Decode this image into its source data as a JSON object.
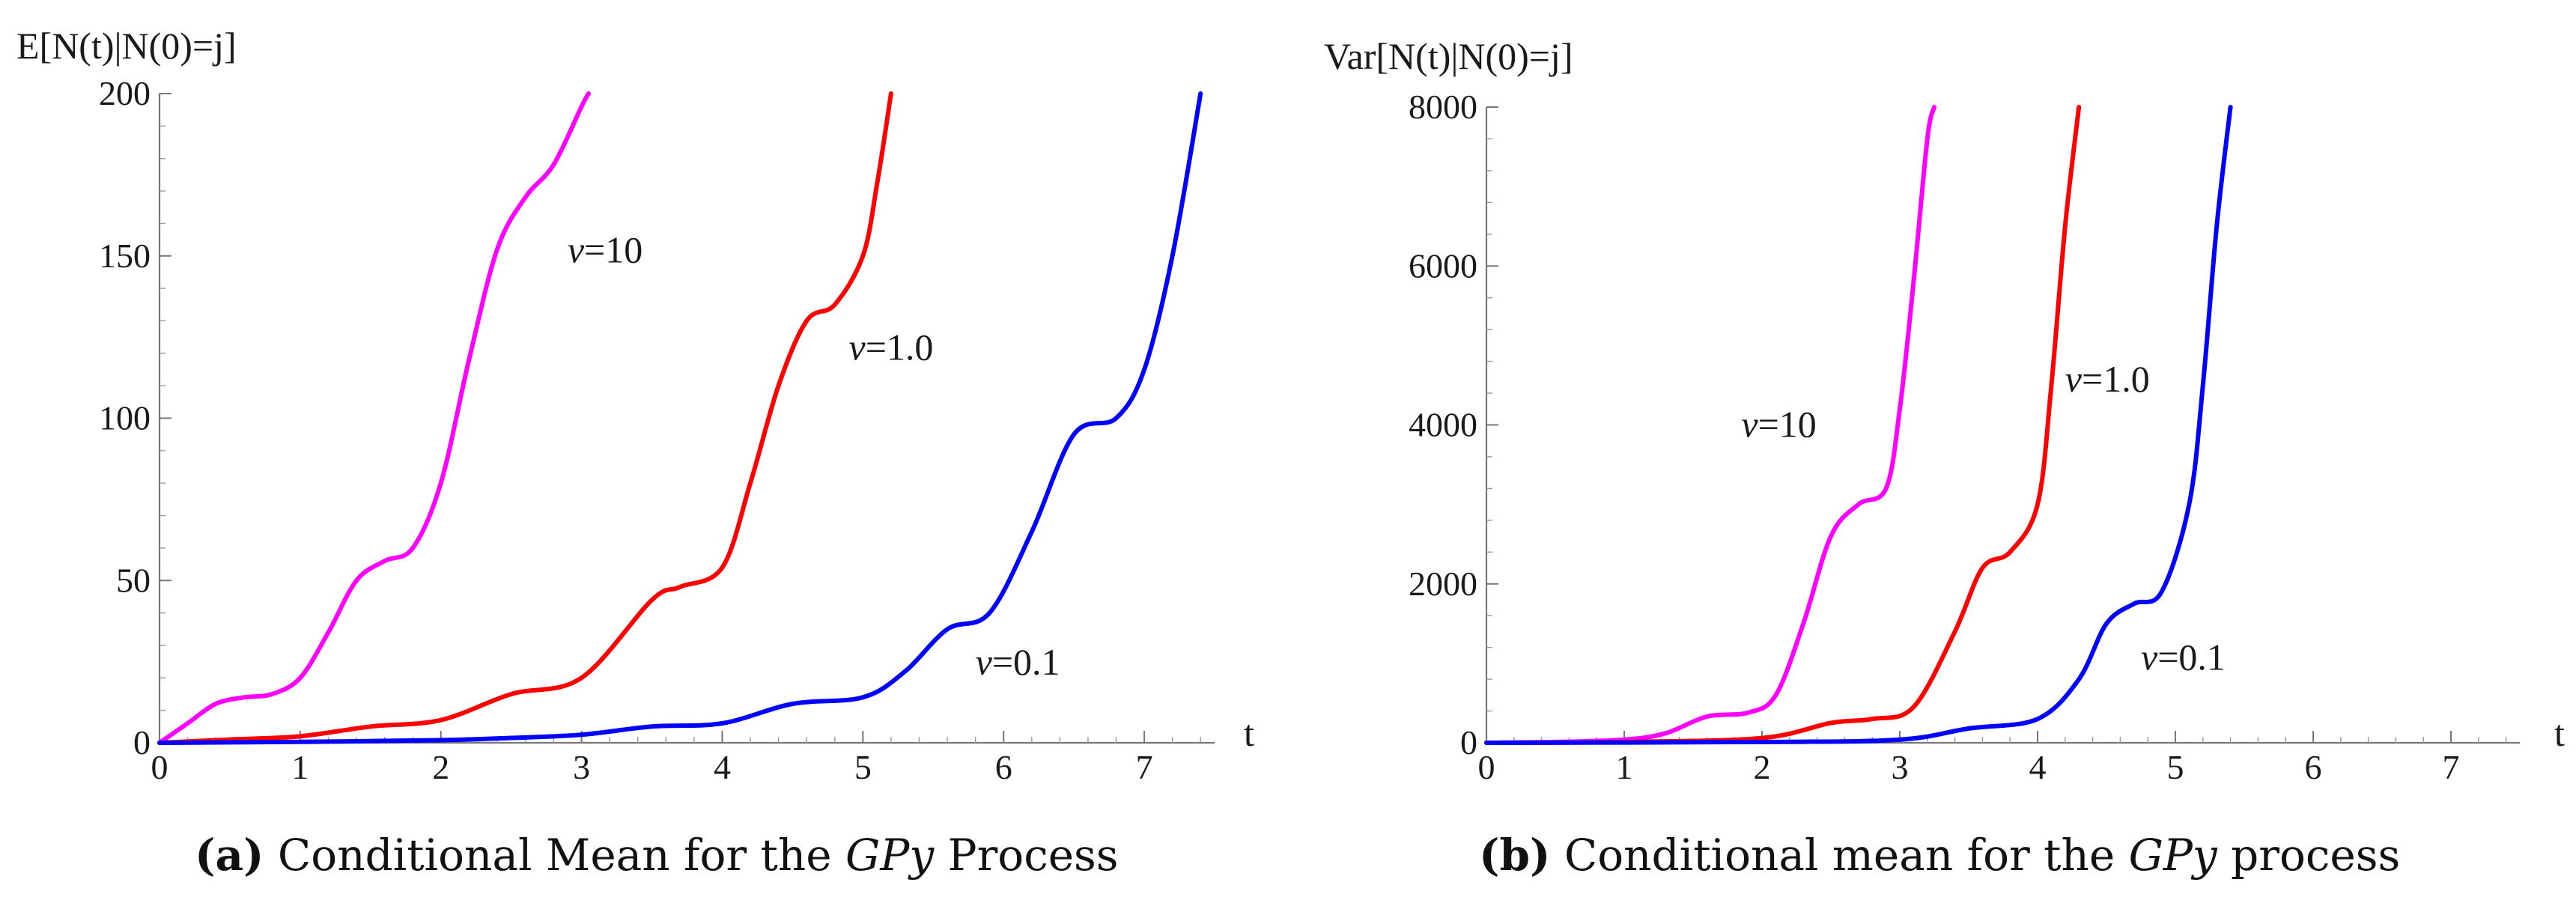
{
  "chart_data": [
    {
      "type": "line",
      "ylabel": "E[N(t)|N(0)=j]",
      "xlabel": "t",
      "xlim": [
        0,
        7.5
      ],
      "ylim": [
        0,
        200
      ],
      "xticks": [
        0,
        1,
        2,
        3,
        4,
        5,
        6,
        7
      ],
      "yticks": [
        0,
        50,
        100,
        150,
        200
      ],
      "series": [
        {
          "name": "ν=10",
          "color": "#ff00ff",
          "x": [
            0,
            0.2,
            0.4,
            0.6,
            0.8,
            1.0,
            1.2,
            1.4,
            1.6,
            1.8,
            2.0,
            2.2,
            2.4,
            2.6,
            2.8,
            3.0,
            3.05
          ],
          "y": [
            0,
            6,
            12,
            14,
            15,
            20,
            34,
            50,
            56,
            60,
            80,
            118,
            152,
            168,
            178,
            196,
            200
          ]
        },
        {
          "name": "ν=1.0",
          "color": "#ff0000",
          "x": [
            0,
            0.5,
            1.0,
            1.5,
            2.0,
            2.5,
            3.0,
            3.5,
            3.7,
            4.0,
            4.2,
            4.4,
            4.6,
            4.8,
            5.0,
            5.1,
            5.2
          ],
          "y": [
            0,
            1,
            2,
            5,
            7,
            15,
            20,
            44,
            48,
            54,
            80,
            110,
            130,
            135,
            150,
            172,
            200
          ]
        },
        {
          "name": "ν=0.1",
          "color": "#0000ff",
          "x": [
            0,
            1.0,
            2.0,
            2.5,
            3.0,
            3.5,
            4.0,
            4.5,
            5.0,
            5.3,
            5.6,
            5.9,
            6.2,
            6.5,
            6.8,
            7.0,
            7.2,
            7.4
          ],
          "y": [
            0,
            0.3,
            0.8,
            1.5,
            2.5,
            5,
            6,
            12,
            14,
            22,
            35,
            40,
            65,
            95,
            100,
            115,
            150,
            200
          ]
        }
      ],
      "annotations": [
        {
          "nu": "ν",
          "text": "=10",
          "x": 2.9,
          "y": 148
        },
        {
          "nu": "ν",
          "text": "=1.0",
          "x": 4.9,
          "y": 118
        },
        {
          "nu": "ν",
          "text": "=0.1",
          "x": 5.8,
          "y": 21
        }
      ],
      "caption": {
        "tag": "(a)",
        "pre": " Conditional Mean for the ",
        "math": "GPy",
        "post": " Process"
      }
    },
    {
      "type": "line",
      "ylabel": "Var[N(t)|N(0)=j]",
      "xlabel": "t",
      "xlim": [
        0,
        7.5
      ],
      "ylim": [
        0,
        8000
      ],
      "xticks": [
        0,
        1,
        2,
        3,
        4,
        5,
        6,
        7
      ],
      "yticks": [
        0,
        2000,
        4000,
        6000,
        8000
      ],
      "series": [
        {
          "name": "ν=10",
          "color": "#ff00ff",
          "x": [
            0,
            0.5,
            1.0,
            1.3,
            1.6,
            1.9,
            2.1,
            2.3,
            2.5,
            2.7,
            2.9,
            3.0,
            3.1,
            3.2,
            3.25
          ],
          "y": [
            0,
            10,
            40,
            120,
            330,
            380,
            600,
            1500,
            2600,
            3000,
            3200,
            4200,
            5800,
            7600,
            8000
          ]
        },
        {
          "name": "ν=1.0",
          "color": "#ff0000",
          "x": [
            0,
            1.0,
            2.0,
            2.5,
            2.8,
            3.1,
            3.4,
            3.6,
            3.8,
            4.0,
            4.1,
            4.2,
            4.3
          ],
          "y": [
            0,
            10,
            60,
            250,
            300,
            450,
            1400,
            2200,
            2400,
            3000,
            4500,
            6500,
            8000
          ]
        },
        {
          "name": "ν=0.1",
          "color": "#0000ff",
          "x": [
            0,
            2.0,
            3.0,
            3.5,
            4.0,
            4.3,
            4.5,
            4.7,
            4.9,
            5.1,
            5.2,
            5.3,
            5.4
          ],
          "y": [
            0,
            10,
            40,
            180,
            300,
            800,
            1500,
            1750,
            1900,
            3000,
            4500,
            6500,
            8000
          ]
        }
      ],
      "annotations": [
        {
          "nu": "ν",
          "text": "=10",
          "x": 1.85,
          "y": 3850
        },
        {
          "nu": "ν",
          "text": "=1.0",
          "x": 4.2,
          "y": 4420
        },
        {
          "nu": "ν",
          "text": "=0.1",
          "x": 4.75,
          "y": 920
        }
      ],
      "caption": {
        "tag": "(b)",
        "pre": " Conditional mean for the ",
        "math": "GPy",
        "post": " process"
      }
    }
  ]
}
